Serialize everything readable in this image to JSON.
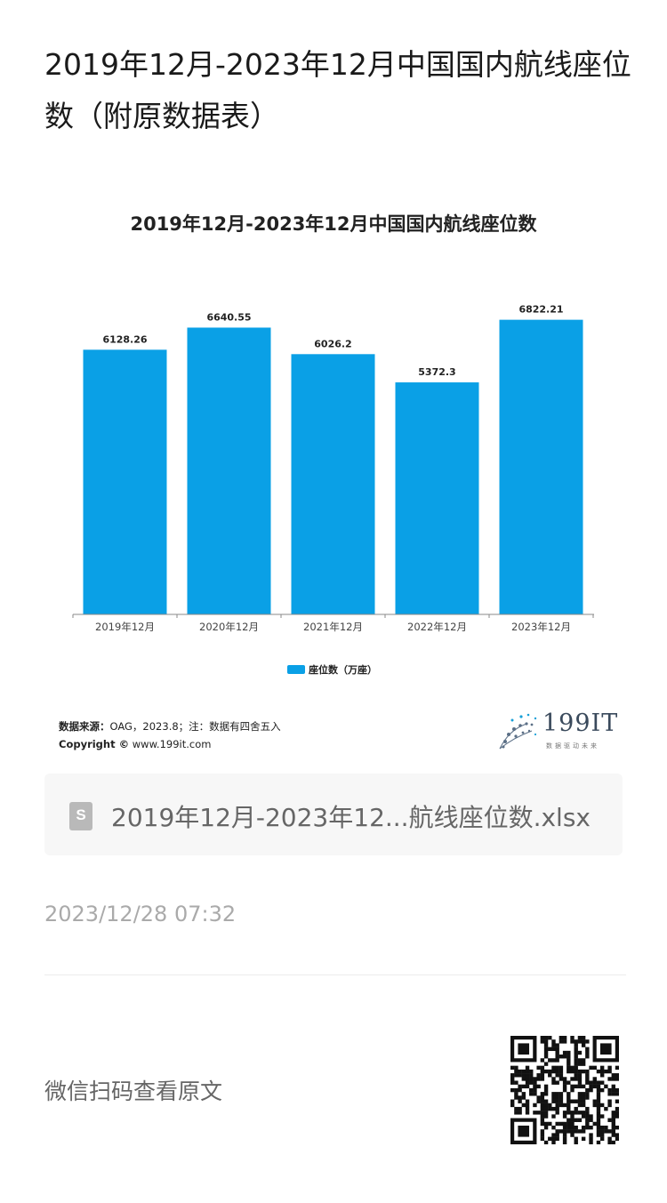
{
  "article": {
    "title": "2019年12月-2023年12月中国国内航线座位数（附原数据表）",
    "timestamp": "2023/12/28 07:32",
    "read_original": "微信扫码查看原文"
  },
  "attachment": {
    "file_name": "2019年12月-2023年12...航线座位数.xlsx",
    "icon": "spreadsheet-file-icon"
  },
  "chart_footer": {
    "source_label": "数据来源：",
    "source_text": "OAG，2023.8；注：数据有四舍五入",
    "copyright_label": "Copyright ©",
    "copyright_text": "www.199it.com",
    "logo_text": "199IT",
    "logo_sub": "数据驱动未来"
  },
  "chart_data": {
    "type": "bar",
    "title": "2019年12月-2023年12月中国国内航线座位数",
    "categories": [
      "2019年12月",
      "2020年12月",
      "2021年12月",
      "2022年12月",
      "2023年12月"
    ],
    "series": [
      {
        "name": "座位数（万座）",
        "values": [
          6128.26,
          6640.55,
          6026.2,
          5372.3,
          6822.21
        ]
      }
    ],
    "data_labels": [
      "6128.26",
      "6640.55",
      "6026.2",
      "5372.3",
      "6822.21"
    ],
    "ylim": [
      0,
      7000
    ],
    "grid": false,
    "legend": "bottom",
    "colors": {
      "bar": "#0aa0e6"
    }
  }
}
